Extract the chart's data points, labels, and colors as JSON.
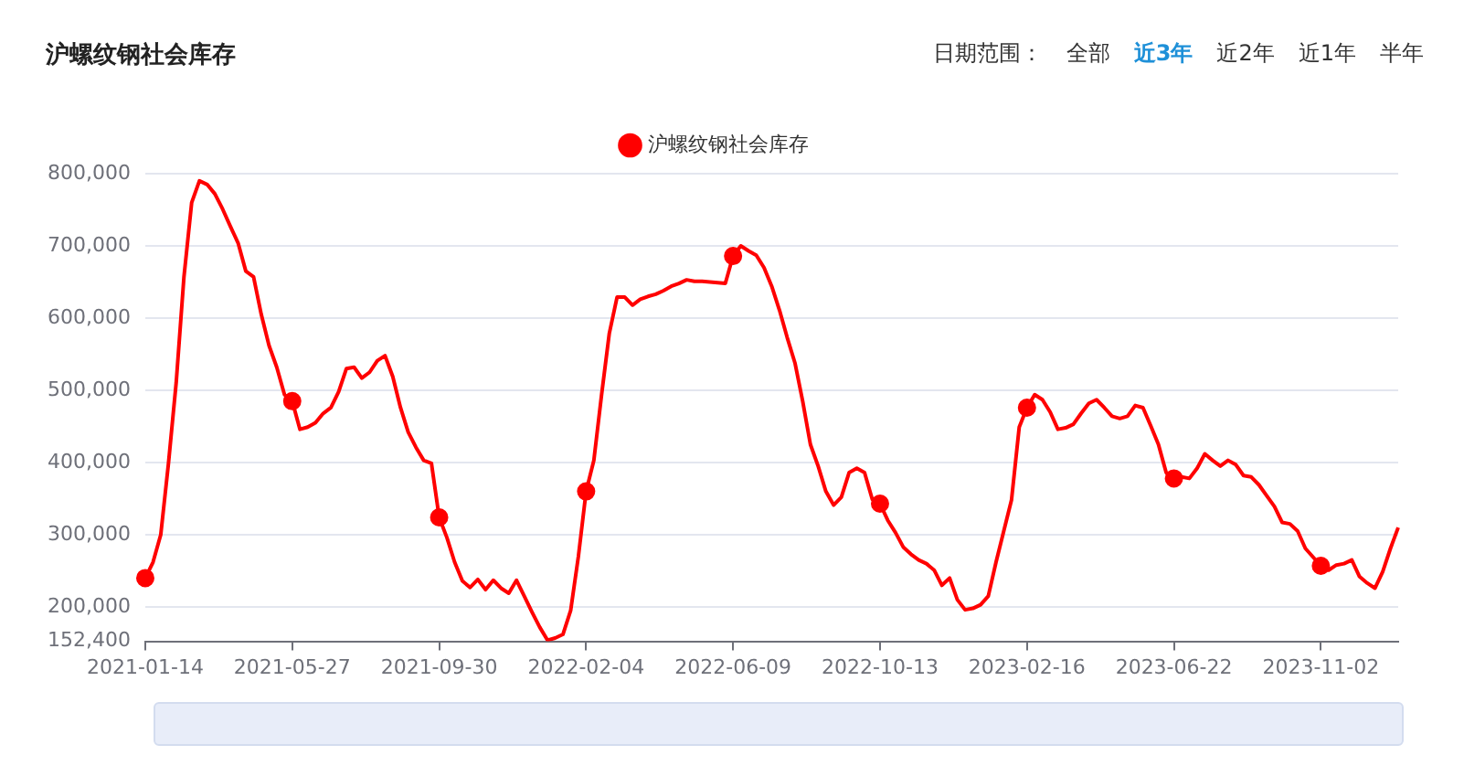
{
  "chart_data": {
    "type": "line",
    "title": "沪螺纹钢社会库存",
    "annotations": [
      "日期范围：",
      "全部",
      "近3年",
      "近2年",
      "近1年",
      "半年"
    ],
    "categories": [
      "2021-01-14",
      null,
      null,
      null,
      null,
      null,
      null,
      null,
      null,
      null,
      null,
      null,
      null,
      null,
      null,
      null,
      null,
      null,
      null,
      "2021-05-27",
      null,
      null,
      null,
      null,
      null,
      null,
      null,
      null,
      null,
      null,
      null,
      null,
      null,
      null,
      null,
      null,
      null,
      null,
      "2021-09-30",
      null,
      null,
      null,
      null,
      null,
      null,
      null,
      null,
      null,
      null,
      null,
      null,
      null,
      null,
      null,
      null,
      null,
      null,
      "2022-02-04",
      null,
      null,
      null,
      null,
      null,
      null,
      null,
      null,
      null,
      null,
      null,
      null,
      null,
      null,
      null,
      null,
      null,
      null,
      "2022-06-09",
      null,
      null,
      null,
      null,
      null,
      null,
      null,
      null,
      null,
      null,
      null,
      null,
      null,
      null,
      null,
      null,
      null,
      null,
      "2022-10-13",
      null,
      null,
      null,
      null,
      null,
      null,
      null,
      null,
      null,
      null,
      null,
      null,
      null,
      null,
      null,
      null,
      null,
      null,
      "2023-02-16",
      null,
      null,
      null,
      null,
      null,
      null,
      null,
      null,
      null,
      null,
      null,
      null,
      null,
      null,
      null,
      null,
      null,
      null,
      "2023-06-22",
      null,
      null,
      null,
      null,
      null,
      null,
      null,
      null,
      null,
      null,
      null,
      null,
      null,
      null,
      null,
      null,
      null,
      null,
      "2023-11-02",
      null,
      null,
      null,
      null,
      null,
      null,
      null,
      null,
      null,
      null
    ],
    "series": [
      {
        "type": "scatter",
        "color": "#ff0000",
        "marker": "circle",
        "values": [
          240000,
          null,
          null,
          null,
          null,
          null,
          null,
          null,
          null,
          null,
          null,
          null,
          null,
          null,
          null,
          null,
          null,
          null,
          null,
          485000,
          null,
          null,
          null,
          null,
          null,
          null,
          null,
          null,
          null,
          null,
          null,
          null,
          null,
          null,
          null,
          null,
          null,
          null,
          324000,
          null,
          null,
          null,
          null,
          null,
          null,
          null,
          null,
          null,
          null,
          null,
          null,
          null,
          null,
          null,
          null,
          null,
          null,
          360000,
          null,
          null,
          null,
          null,
          null,
          null,
          null,
          null,
          null,
          null,
          null,
          null,
          null,
          null,
          null,
          null,
          null,
          null,
          686000,
          null,
          null,
          null,
          null,
          null,
          null,
          null,
          null,
          null,
          null,
          null,
          null,
          null,
          null,
          null,
          null,
          null,
          null,
          343000,
          null,
          null,
          null,
          null,
          null,
          null,
          null,
          null,
          null,
          null,
          null,
          null,
          null,
          null,
          null,
          null,
          null,
          null,
          476000,
          null,
          null,
          null,
          null,
          null,
          null,
          null,
          null,
          null,
          null,
          null,
          null,
          null,
          null,
          null,
          null,
          null,
          null,
          378000,
          null,
          null,
          null,
          null,
          null,
          null,
          null,
          null,
          null,
          null,
          null,
          null,
          null,
          null,
          null,
          null,
          null,
          null,
          257000,
          null,
          null,
          null,
          null,
          null,
          null,
          null,
          null,
          null,
          null
        ]
      },
      {
        "name": "沪螺纹钢社会库存",
        "color": "#ff0000",
        "marker": "none",
        "values": [
          240000,
          262000,
          300000,
          399000,
          511000,
          657000,
          760000,
          790000,
          785000,
          772000,
          751000,
          727000,
          704000,
          665000,
          657000,
          605000,
          562000,
          532000,
          494000,
          485000,
          446000,
          449000,
          455000,
          468000,
          476000,
          498000,
          530000,
          532000,
          517000,
          525000,
          541000,
          548000,
          519000,
          476000,
          442000,
          421000,
          403000,
          399000,
          324000,
          296000,
          262000,
          236000,
          227000,
          238000,
          224000,
          237000,
          226000,
          219000,
          237000,
          215000,
          193000,
          172000,
          154000,
          157000,
          162000,
          195000,
          270000,
          360000,
          403000,
          494000,
          579000,
          629000,
          629000,
          618000,
          626000,
          630000,
          633000,
          638000,
          644000,
          648000,
          653000,
          651000,
          651000,
          650000,
          649000,
          648000,
          686000,
          700000,
          693000,
          687000,
          670000,
          644000,
          611000,
          573000,
          538000,
          485000,
          425000,
          395000,
          360000,
          341000,
          352000,
          386000,
          392000,
          386000,
          349000,
          343000,
          320000,
          303000,
          283000,
          273000,
          265000,
          260000,
          251000,
          230000,
          240000,
          210000,
          196000,
          198000,
          203000,
          215000,
          262000,
          305000,
          348000,
          449000,
          476000,
          494000,
          487000,
          470000,
          446000,
          448000,
          453000,
          468000,
          482000,
          487000,
          476000,
          464000,
          461000,
          464000,
          479000,
          476000,
          451000,
          425000,
          386000,
          378000,
          380000,
          378000,
          392000,
          412000,
          403000,
          395000,
          403000,
          397000,
          382000,
          380000,
          369000,
          354000,
          339000,
          317000,
          315000,
          305000,
          281000,
          269000,
          257000,
          251000,
          258000,
          260000,
          265000,
          242000,
          233000,
          226000,
          249000,
          281000,
          310000
        ]
      }
    ],
    "ylim": [
      152400,
      800000
    ],
    "yticks": [
      {
        "value": 152400,
        "label": "152,400"
      },
      {
        "value": 200000,
        "label": "200,000"
      },
      {
        "value": 300000,
        "label": "300,000"
      },
      {
        "value": 400000,
        "label": "400,000"
      },
      {
        "value": 500000,
        "label": "500,000"
      },
      {
        "value": 600000,
        "label": "600,000"
      },
      {
        "value": 700000,
        "label": "700,000"
      },
      {
        "value": 800000,
        "label": "800,000"
      }
    ],
    "grid": "y",
    "legend": "top",
    "line_style": "solid"
  }
}
